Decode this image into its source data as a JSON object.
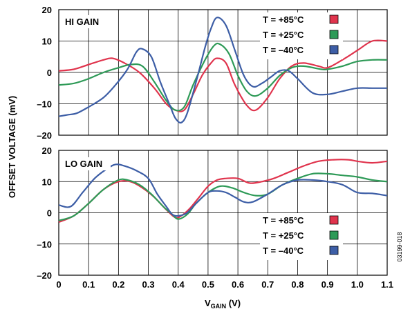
{
  "figure_id": "03199-018",
  "x_label_main": "V",
  "x_label_sub": "GAIN",
  "x_label_unit": " (V)",
  "y_label": "OFFSET VOLTAGE (mV)",
  "colors": {
    "hot": "#e0344d",
    "room": "#2e9a57",
    "cold": "#3d5ea6"
  },
  "chart_data": [
    {
      "type": "line",
      "title": "HI GAIN",
      "xlim": [
        0,
        1.1
      ],
      "ylim": [
        -20,
        20
      ],
      "x_ticks": [
        "0",
        "0.1",
        "0.2",
        "0.3",
        "0.4",
        "0.5",
        "0.6",
        "0.7",
        "0.8",
        "0.9",
        "1.0",
        "1.1"
      ],
      "y_ticks": [
        "20",
        "10",
        "0",
        "–10",
        "–20"
      ],
      "y_tick_values": [
        20,
        10,
        0,
        -10,
        -20
      ],
      "legend_placement": "top-right",
      "series": [
        {
          "name": "T = +85°C",
          "color": "#e0344d",
          "points": [
            [
              0,
              0.5
            ],
            [
              0.05,
              1
            ],
            [
              0.1,
              2.5
            ],
            [
              0.15,
              4
            ],
            [
              0.18,
              4.5
            ],
            [
              0.22,
              3
            ],
            [
              0.27,
              0
            ],
            [
              0.32,
              -5
            ],
            [
              0.36,
              -10
            ],
            [
              0.39,
              -12
            ],
            [
              0.42,
              -12
            ],
            [
              0.45,
              -7
            ],
            [
              0.48,
              -1
            ],
            [
              0.51,
              3
            ],
            [
              0.53,
              4.5
            ],
            [
              0.56,
              3
            ],
            [
              0.59,
              -4
            ],
            [
              0.63,
              -10.5
            ],
            [
              0.66,
              -12
            ],
            [
              0.7,
              -8
            ],
            [
              0.74,
              -2
            ],
            [
              0.78,
              2
            ],
            [
              0.82,
              3
            ],
            [
              0.87,
              2
            ],
            [
              0.9,
              1.5
            ],
            [
              0.95,
              4
            ],
            [
              1.0,
              7
            ],
            [
              1.05,
              10
            ],
            [
              1.1,
              10
            ]
          ]
        },
        {
          "name": "T = +25°C",
          "color": "#2e9a57",
          "points": [
            [
              0,
              -4
            ],
            [
              0.05,
              -3.5
            ],
            [
              0.1,
              -2
            ],
            [
              0.15,
              0
            ],
            [
              0.2,
              1.5
            ],
            [
              0.24,
              2.5
            ],
            [
              0.28,
              2
            ],
            [
              0.32,
              -3
            ],
            [
              0.36,
              -9
            ],
            [
              0.39,
              -12
            ],
            [
              0.42,
              -11
            ],
            [
              0.45,
              -4
            ],
            [
              0.49,
              4
            ],
            [
              0.52,
              8.5
            ],
            [
              0.54,
              9
            ],
            [
              0.57,
              6
            ],
            [
              0.6,
              -1
            ],
            [
              0.63,
              -6
            ],
            [
              0.66,
              -7.5
            ],
            [
              0.7,
              -5
            ],
            [
              0.74,
              -1
            ],
            [
              0.78,
              1.5
            ],
            [
              0.82,
              2
            ],
            [
              0.88,
              1
            ],
            [
              0.9,
              1
            ],
            [
              0.95,
              2
            ],
            [
              1.0,
              3.5
            ],
            [
              1.05,
              4
            ],
            [
              1.1,
              4
            ]
          ]
        },
        {
          "name": "T = –40°C",
          "color": "#3d5ea6",
          "points": [
            [
              0,
              -14
            ],
            [
              0.03,
              -13.5
            ],
            [
              0.06,
              -13
            ],
            [
              0.1,
              -11
            ],
            [
              0.15,
              -8
            ],
            [
              0.19,
              -4
            ],
            [
              0.23,
              1
            ],
            [
              0.26,
              6.5
            ],
            [
              0.28,
              7.5
            ],
            [
              0.31,
              5
            ],
            [
              0.34,
              -3
            ],
            [
              0.37,
              -10
            ],
            [
              0.39,
              -14.5
            ],
            [
              0.41,
              -16
            ],
            [
              0.43,
              -13
            ],
            [
              0.46,
              -3
            ],
            [
              0.49,
              8
            ],
            [
              0.51,
              14
            ],
            [
              0.53,
              17.5
            ],
            [
              0.56,
              15
            ],
            [
              0.59,
              7
            ],
            [
              0.62,
              -1
            ],
            [
              0.65,
              -4.5
            ],
            [
              0.68,
              -3.5
            ],
            [
              0.71,
              -1.5
            ],
            [
              0.74,
              0.5
            ],
            [
              0.77,
              0.5
            ],
            [
              0.8,
              -2
            ],
            [
              0.85,
              -6.5
            ],
            [
              0.9,
              -7
            ],
            [
              0.95,
              -6
            ],
            [
              1.0,
              -5
            ],
            [
              1.05,
              -5
            ],
            [
              1.1,
              -5
            ]
          ]
        }
      ]
    },
    {
      "type": "line",
      "title": "LO GAIN",
      "xlim": [
        0,
        1.1
      ],
      "ylim": [
        -20,
        20
      ],
      "x_ticks": [
        "0",
        "0.1",
        "0.2",
        "0.3",
        "0.4",
        "0.5",
        "0.6",
        "0.7",
        "0.8",
        "0.9",
        "1.0",
        "1.1"
      ],
      "y_ticks": [
        "20",
        "10",
        "0",
        "–10",
        "–20"
      ],
      "y_tick_values": [
        20,
        10,
        0,
        -10,
        -20
      ],
      "legend_placement": "bottom-right",
      "series": [
        {
          "name": "T = +85°C",
          "color": "#e0344d",
          "points": [
            [
              0,
              -3
            ],
            [
              0.05,
              -1
            ],
            [
              0.1,
              3
            ],
            [
              0.15,
              7.5
            ],
            [
              0.2,
              10
            ],
            [
              0.24,
              10
            ],
            [
              0.28,
              8
            ],
            [
              0.32,
              5
            ],
            [
              0.36,
              1
            ],
            [
              0.39,
              -1.5
            ],
            [
              0.41,
              -1
            ],
            [
              0.44,
              1.5
            ],
            [
              0.47,
              5
            ],
            [
              0.5,
              8.5
            ],
            [
              0.53,
              10.5
            ],
            [
              0.56,
              11
            ],
            [
              0.6,
              11
            ],
            [
              0.64,
              9.5
            ],
            [
              0.68,
              10
            ],
            [
              0.72,
              11
            ],
            [
              0.77,
              13
            ],
            [
              0.82,
              15
            ],
            [
              0.87,
              16.5
            ],
            [
              0.92,
              17
            ],
            [
              0.97,
              17
            ],
            [
              1.0,
              16.5
            ],
            [
              1.05,
              16
            ],
            [
              1.1,
              16.5
            ]
          ]
        },
        {
          "name": "T = +25°C",
          "color": "#2e9a57",
          "points": [
            [
              0,
              -2.5
            ],
            [
              0.05,
              -1
            ],
            [
              0.1,
              3
            ],
            [
              0.15,
              7.5
            ],
            [
              0.2,
              10.5
            ],
            [
              0.23,
              10.5
            ],
            [
              0.27,
              9
            ],
            [
              0.31,
              6
            ],
            [
              0.35,
              2
            ],
            [
              0.38,
              -0.5
            ],
            [
              0.4,
              -2
            ],
            [
              0.43,
              -0.5
            ],
            [
              0.46,
              3
            ],
            [
              0.5,
              6.5
            ],
            [
              0.54,
              8.5
            ],
            [
              0.58,
              8
            ],
            [
              0.62,
              6.5
            ],
            [
              0.66,
              5.5
            ],
            [
              0.7,
              6
            ],
            [
              0.75,
              9
            ],
            [
              0.8,
              11
            ],
            [
              0.85,
              12.5
            ],
            [
              0.9,
              12.5
            ],
            [
              0.95,
              12
            ],
            [
              1.0,
              11.5
            ],
            [
              1.05,
              10.5
            ],
            [
              1.1,
              10
            ]
          ]
        },
        {
          "name": "T = –40°C",
          "color": "#3d5ea6",
          "points": [
            [
              0,
              2.5
            ],
            [
              0.04,
              2
            ],
            [
              0.08,
              6.5
            ],
            [
              0.12,
              11
            ],
            [
              0.16,
              14
            ],
            [
              0.19,
              15.5
            ],
            [
              0.22,
              15
            ],
            [
              0.26,
              13.5
            ],
            [
              0.3,
              11
            ],
            [
              0.33,
              6
            ],
            [
              0.36,
              2
            ],
            [
              0.38,
              -0.5
            ],
            [
              0.4,
              -1
            ],
            [
              0.43,
              0
            ],
            [
              0.46,
              3
            ],
            [
              0.5,
              6.5
            ],
            [
              0.53,
              7
            ],
            [
              0.56,
              6.5
            ],
            [
              0.59,
              5
            ],
            [
              0.62,
              3.5
            ],
            [
              0.65,
              3.5
            ],
            [
              0.7,
              6
            ],
            [
              0.75,
              9
            ],
            [
              0.8,
              10.5
            ],
            [
              0.85,
              10.5
            ],
            [
              0.9,
              10
            ],
            [
              0.95,
              9
            ],
            [
              1.0,
              6.5
            ],
            [
              1.05,
              6.2
            ],
            [
              1.1,
              5.5
            ]
          ]
        }
      ]
    }
  ]
}
